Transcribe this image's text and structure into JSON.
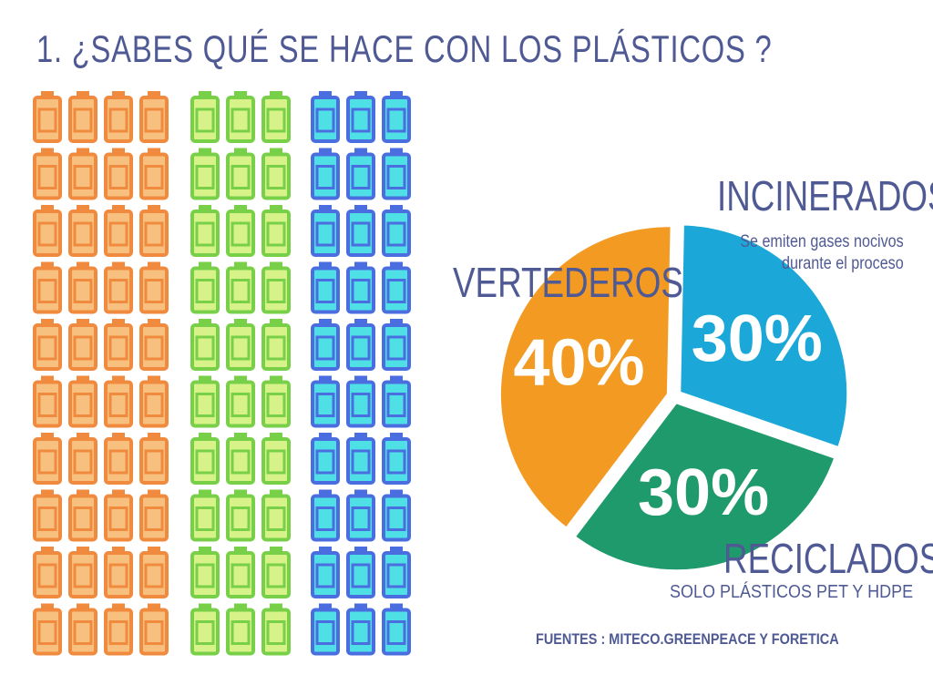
{
  "title": "1. ¿SABES QUÉ SE HACE CON LOS PLÁSTICOS ?",
  "source": "FUENTES : MITECO.GREENPEACE Y FORETICA",
  "bottle_grid": {
    "rows": 10,
    "groups": [
      {
        "name": "vertederos",
        "columns": 4,
        "fill": "#f7c07f",
        "stroke": "#f08a3e"
      },
      {
        "name": "reciclados",
        "columns": 3,
        "fill": "#d8f28a",
        "stroke": "#78d048"
      },
      {
        "name": "incinerados",
        "columns": 3,
        "fill": "#4fe0e6",
        "stroke": "#4a6ee0"
      }
    ]
  },
  "chart_data": {
    "type": "pie",
    "slices": [
      {
        "name": "INCINERADOS",
        "value": 30,
        "label": "30%",
        "color": "#1ba8d8",
        "note": [
          "Se emiten gases nocivos",
          "durante el proceso"
        ]
      },
      {
        "name": "RECICLADOS",
        "value": 30,
        "label": "30%",
        "color": "#1f9a6c",
        "note": [
          "SOLO PLÁSTICOS PET Y HDPE"
        ]
      },
      {
        "name": "VERTEDEROS",
        "value": 40,
        "label": "40%",
        "color": "#f29a22",
        "note": []
      }
    ]
  }
}
